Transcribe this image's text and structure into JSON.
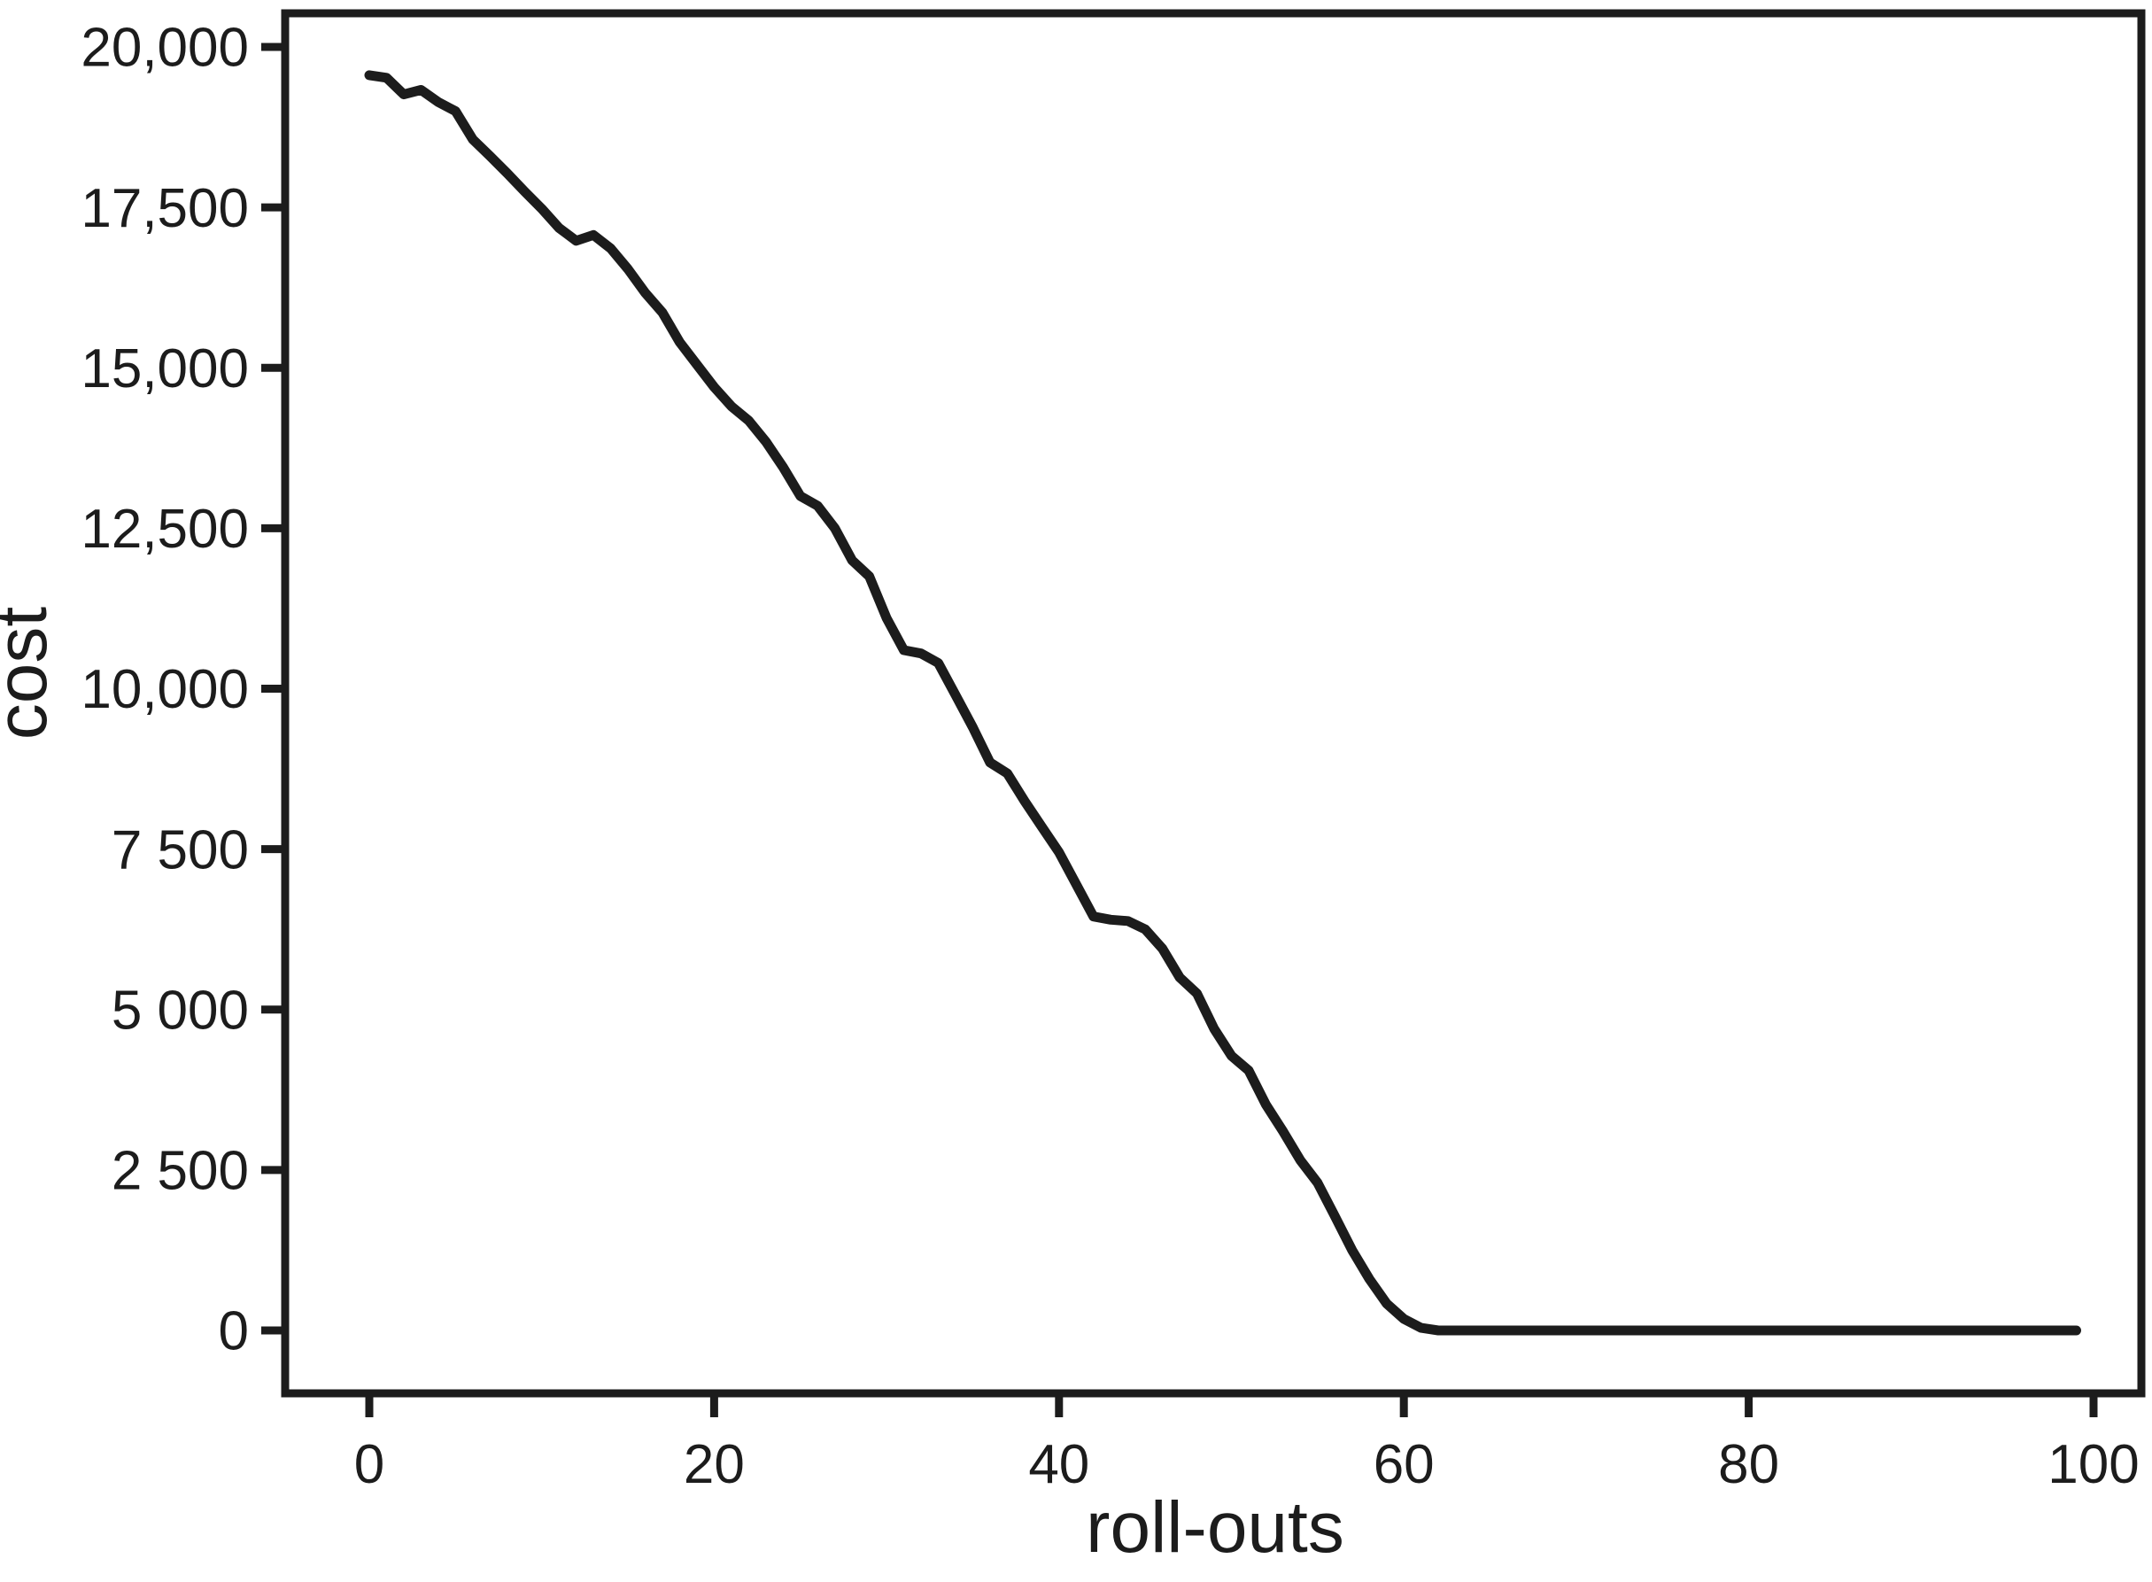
{
  "chart_data": {
    "type": "line",
    "title": "",
    "xlabel": "roll-outs",
    "ylabel": "cost",
    "x_range": [
      0,
      100
    ],
    "y_range": [
      0,
      20000
    ],
    "grid": false,
    "legend": "none",
    "background_color": "#ffffff",
    "line_color": "#1c1c1c",
    "frame_color": "#1c1c1c",
    "x_ticks": {
      "values": [
        0,
        20,
        40,
        60,
        80,
        100
      ],
      "labels": [
        "0",
        "20",
        "40",
        "60",
        "80",
        "100"
      ]
    },
    "y_ticks": {
      "values": [
        0,
        2500,
        5000,
        7500,
        10000,
        12500,
        15000,
        17500,
        20000
      ],
      "labels": [
        "0",
        "2 500",
        "5 000",
        "7 500",
        "10,000",
        "12,500",
        "15,000",
        "17,500",
        "20,000"
      ]
    },
    "series": [
      {
        "name": "cost",
        "x": [
          0,
          1,
          2,
          3,
          4,
          5,
          6,
          7,
          8,
          9,
          10,
          11,
          12,
          13,
          14,
          15,
          16,
          17,
          18,
          19,
          20,
          21,
          22,
          23,
          24,
          25,
          26,
          27,
          28,
          29,
          30,
          31,
          32,
          33,
          34,
          35,
          36,
          37,
          38,
          39,
          40,
          41,
          42,
          43,
          44,
          45,
          46,
          47,
          48,
          49,
          50,
          51,
          52,
          53,
          54,
          55,
          56,
          57,
          58,
          59,
          60,
          61,
          62,
          63,
          64,
          65,
          66,
          67,
          68,
          69,
          70,
          71,
          72,
          73,
          74,
          75,
          76,
          77,
          78,
          79,
          80,
          81,
          82,
          83,
          84,
          85,
          86,
          87,
          88,
          89,
          90,
          91,
          92,
          93,
          94,
          95,
          96,
          97,
          98,
          99
        ],
        "values": [
          19560,
          19520,
          19260,
          19330,
          19140,
          19000,
          18560,
          18300,
          18030,
          17750,
          17480,
          17180,
          16980,
          17070,
          16860,
          16540,
          16170,
          15860,
          15400,
          15050,
          14700,
          14400,
          14180,
          13850,
          13450,
          13000,
          12850,
          12500,
          12000,
          11750,
          11100,
          10600,
          10550,
          10400,
          9900,
          9400,
          8850,
          8680,
          8250,
          7850,
          7450,
          6950,
          6450,
          6400,
          6380,
          6250,
          5950,
          5500,
          5250,
          4700,
          4280,
          4050,
          3520,
          3100,
          2650,
          2300,
          1780,
          1250,
          800,
          420,
          180,
          40,
          0,
          0,
          0,
          0,
          0,
          0,
          0,
          0,
          0,
          0,
          0,
          0,
          0,
          0,
          0,
          0,
          0,
          0,
          0,
          0,
          0,
          0,
          0,
          0,
          0,
          0,
          0,
          0,
          0,
          0,
          0,
          0,
          0,
          0,
          0,
          0,
          0,
          0
        ]
      }
    ]
  }
}
